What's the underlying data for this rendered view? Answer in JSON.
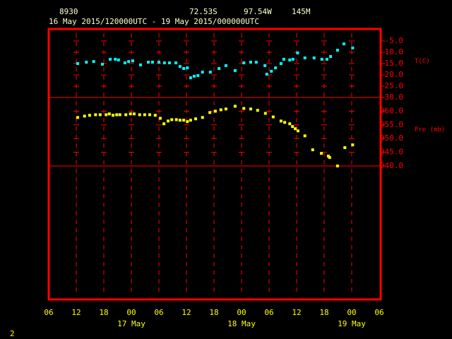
{
  "header": {
    "station": "8930",
    "lat": "72.53S",
    "lon": "97.54W",
    "elev": "145M",
    "period": "16 May 2015/120000UTC - 19 May 2015/000000UTC",
    "page": "2"
  },
  "chart_data": [
    {
      "type": "scatter",
      "ylabel": "T(C)",
      "color": "#00ffff",
      "xlim": [
        0,
        72
      ],
      "ylim": [
        -30,
        0.3
      ],
      "yticks": [
        {
          "value": -5,
          "label": "-5.0"
        },
        {
          "value": -10,
          "label": "-10.0"
        },
        {
          "value": -15,
          "label": "-15.0"
        },
        {
          "value": -20,
          "label": "-20.0"
        },
        {
          "value": -25,
          "label": "-25.0"
        },
        {
          "value": -30,
          "label": "-30.0"
        }
      ],
      "x": [
        6.3,
        8.2,
        9.8,
        11.7,
        13.4,
        14.5,
        15.2,
        16.6,
        17.4,
        18.3,
        20,
        21.7,
        22.6,
        24,
        25.2,
        26.3,
        27.7,
        28.6,
        29.4,
        30.2,
        30.9,
        31.7,
        32.5,
        33.5,
        35.2,
        37.1,
        38.6,
        40.6,
        42.5,
        44,
        45.2,
        47.1,
        47.5,
        48.5,
        49.4,
        50.6,
        51.2,
        52.5,
        53.2,
        54.2,
        55.8,
        57.8,
        59.5,
        60.6,
        61.4,
        62.9,
        64.3,
        66.2
      ],
      "values": [
        -15,
        -14.4,
        -14.1,
        -15.3,
        -13.1,
        -13.1,
        -13.4,
        -14.7,
        -14.1,
        -13.8,
        -15.6,
        -14.4,
        -14.4,
        -14.4,
        -14.7,
        -14.7,
        -14.7,
        -16.3,
        -17.2,
        -16.9,
        -21.3,
        -20.6,
        -20.3,
        -18.8,
        -18.8,
        -17.2,
        -15.9,
        -18.1,
        -14.7,
        -14.4,
        -14.4,
        -15.9,
        -19.7,
        -18.4,
        -16.9,
        -15,
        -13.1,
        -13.4,
        -13.1,
        -10.3,
        -12.5,
        -12.5,
        -13.1,
        -13.1,
        -11.9,
        -9.1,
        -6.3,
        -8.1
      ]
    },
    {
      "type": "scatter",
      "ylabel": "Pre (mb)",
      "color": "#ffff00",
      "xlim": [
        0,
        72
      ],
      "ylim": [
        940,
        965
      ],
      "yticks": [
        {
          "value": 960,
          "label": "960.0"
        },
        {
          "value": 955,
          "label": "955.0"
        },
        {
          "value": 950,
          "label": "950.0"
        },
        {
          "value": 945,
          "label": "945.0"
        },
        {
          "value": 940,
          "label": "940.0"
        }
      ],
      "xticks": [
        {
          "value": 0,
          "label": "06"
        },
        {
          "value": 6,
          "label": "12"
        },
        {
          "value": 12,
          "label": "18"
        },
        {
          "value": 18,
          "label": "00"
        },
        {
          "value": 24,
          "label": "06"
        },
        {
          "value": 30,
          "label": "12"
        },
        {
          "value": 36,
          "label": "18"
        },
        {
          "value": 42,
          "label": "00"
        },
        {
          "value": 48,
          "label": "06"
        },
        {
          "value": 54,
          "label": "12"
        },
        {
          "value": 60,
          "label": "18"
        },
        {
          "value": 66,
          "label": "00"
        },
        {
          "value": 72,
          "label": "06"
        }
      ],
      "date_labels": [
        {
          "value": 18,
          "label": "17 May"
        },
        {
          "value": 42,
          "label": "18 May"
        },
        {
          "value": 66,
          "label": "19 May"
        }
      ],
      "x": [
        6.3,
        7.8,
        8.9,
        10.2,
        11.2,
        12.5,
        13.2,
        14,
        14.8,
        15.5,
        16.8,
        17.8,
        18.6,
        19.8,
        20.9,
        22,
        23.2,
        24.3,
        25.1,
        26,
        26.8,
        27.8,
        28.6,
        29.4,
        30.2,
        30.9,
        32,
        33.5,
        35.1,
        36.3,
        37.5,
        38.6,
        40.6,
        42.5,
        44,
        45.5,
        47.2,
        48.9,
        50.6,
        51.4,
        52.5,
        53.1,
        53.7,
        54.3,
        55.8,
        57.5,
        59.4,
        60.9,
        61.2,
        62.9,
        64.5,
        66.2
      ],
      "values": [
        957.7,
        958.2,
        958.5,
        958.7,
        958.7,
        958.7,
        959,
        958.5,
        958.7,
        958.7,
        958.7,
        959,
        959,
        958.7,
        958.7,
        958.7,
        958.5,
        957.4,
        955.4,
        956.4,
        956.9,
        956.9,
        956.7,
        956.7,
        956.2,
        956.7,
        957.2,
        957.7,
        959.5,
        960,
        960.5,
        960.8,
        961.8,
        961,
        960.8,
        960.3,
        959.2,
        957.9,
        956.4,
        955.9,
        955.4,
        954.4,
        953.6,
        952.8,
        951,
        945.9,
        944.6,
        943.6,
        943.1,
        940,
        946.7,
        947.7
      ]
    }
  ]
}
